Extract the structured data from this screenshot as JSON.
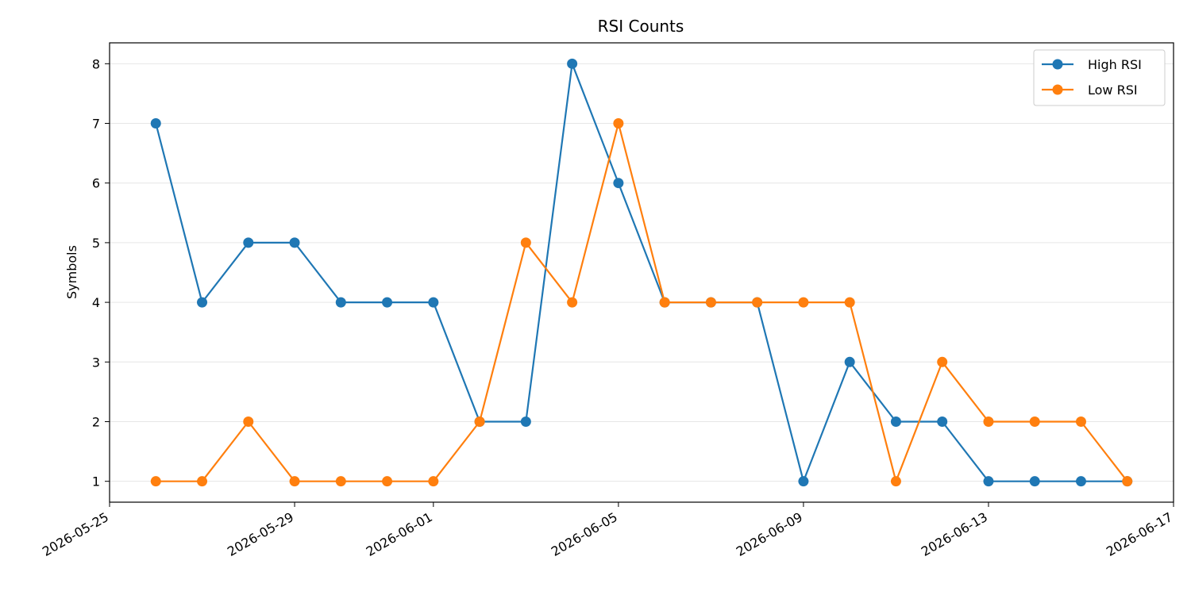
{
  "chart_data": {
    "type": "line",
    "title": "RSI Counts",
    "xlabel": "",
    "ylabel": "Symbols",
    "x": [
      "2026-05-26",
      "2026-05-27",
      "2026-05-28",
      "2026-05-29",
      "2026-05-30",
      "2026-05-31",
      "2026-06-01",
      "2026-06-02",
      "2026-06-03",
      "2026-06-04",
      "2026-06-05",
      "2026-06-06",
      "2026-06-07",
      "2026-06-08",
      "2026-06-09",
      "2026-06-10",
      "2026-06-11",
      "2026-06-12",
      "2026-06-13",
      "2026-06-14",
      "2026-06-15",
      "2026-06-16"
    ],
    "series": [
      {
        "name": "High RSI",
        "color": "#1f77b4",
        "values": [
          7,
          4,
          5,
          5,
          4,
          4,
          4,
          2,
          2,
          8,
          6,
          4,
          4,
          4,
          1,
          3,
          2,
          2,
          1,
          1,
          1,
          1
        ]
      },
      {
        "name": "Low RSI",
        "color": "#ff7f0e",
        "values": [
          1,
          1,
          2,
          1,
          1,
          1,
          1,
          2,
          5,
          4,
          7,
          4,
          4,
          4,
          4,
          4,
          1,
          3,
          2,
          2,
          2,
          1
        ]
      }
    ],
    "xlim": [
      "2026-05-25",
      "2026-06-17"
    ],
    "ylim": [
      0.65,
      8.35
    ],
    "x_ticks": [
      "2026-05-25",
      "2026-05-29",
      "2026-06-01",
      "2026-06-05",
      "2026-06-09",
      "2026-06-13",
      "2026-06-17"
    ],
    "y_ticks": [
      1,
      2,
      3,
      4,
      5,
      6,
      7,
      8
    ],
    "grid": "y",
    "legend_position": "top-right"
  }
}
